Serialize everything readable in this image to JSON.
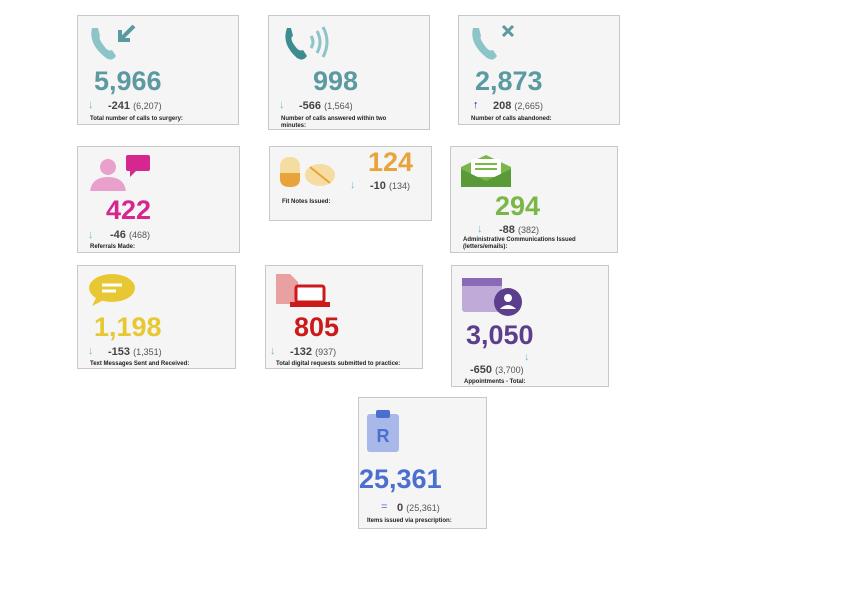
{
  "cards": [
    {
      "value": "5,966",
      "trend": "↓",
      "change": "-241",
      "previous": "(6,207)",
      "label": "Total number of calls to surgery:"
    },
    {
      "value": "998",
      "trend": "↓",
      "change": "-566",
      "previous": "(1,564)",
      "label": "Number of calls answered within two minutes:"
    },
    {
      "value": "2,873",
      "trend": "↑",
      "change": "208",
      "previous": "(2,665)",
      "label": "Number of calls abandoned:"
    },
    {
      "value": "422",
      "trend": "↓",
      "change": "-46",
      "previous": "(468)",
      "label": "Referrals Made:"
    },
    {
      "value": "124",
      "trend": "↓",
      "change": "-10",
      "previous": "(134)",
      "label": "Fit Notes Issued:"
    },
    {
      "value": "294",
      "trend": "↓",
      "change": "-88",
      "previous": "(382)",
      "label": "Administrative Communications Issued (letters/emails):"
    },
    {
      "value": "1,198",
      "trend": "↓",
      "change": "-153",
      "previous": "(1,351)",
      "label": "Text Messages Sent and Received:"
    },
    {
      "value": "805",
      "trend": "↓",
      "change": "-132",
      "previous": "(937)",
      "label": "Total digital requests submitted to practice:"
    },
    {
      "value": "3,050",
      "trend": "↓",
      "change": "-650",
      "previous": "(3,700)",
      "label": "Appointments - Total:"
    },
    {
      "value": "25,361",
      "trend": "=",
      "change": "0",
      "previous": "(25,361)",
      "label": "Items issued via prescription:"
    }
  ]
}
